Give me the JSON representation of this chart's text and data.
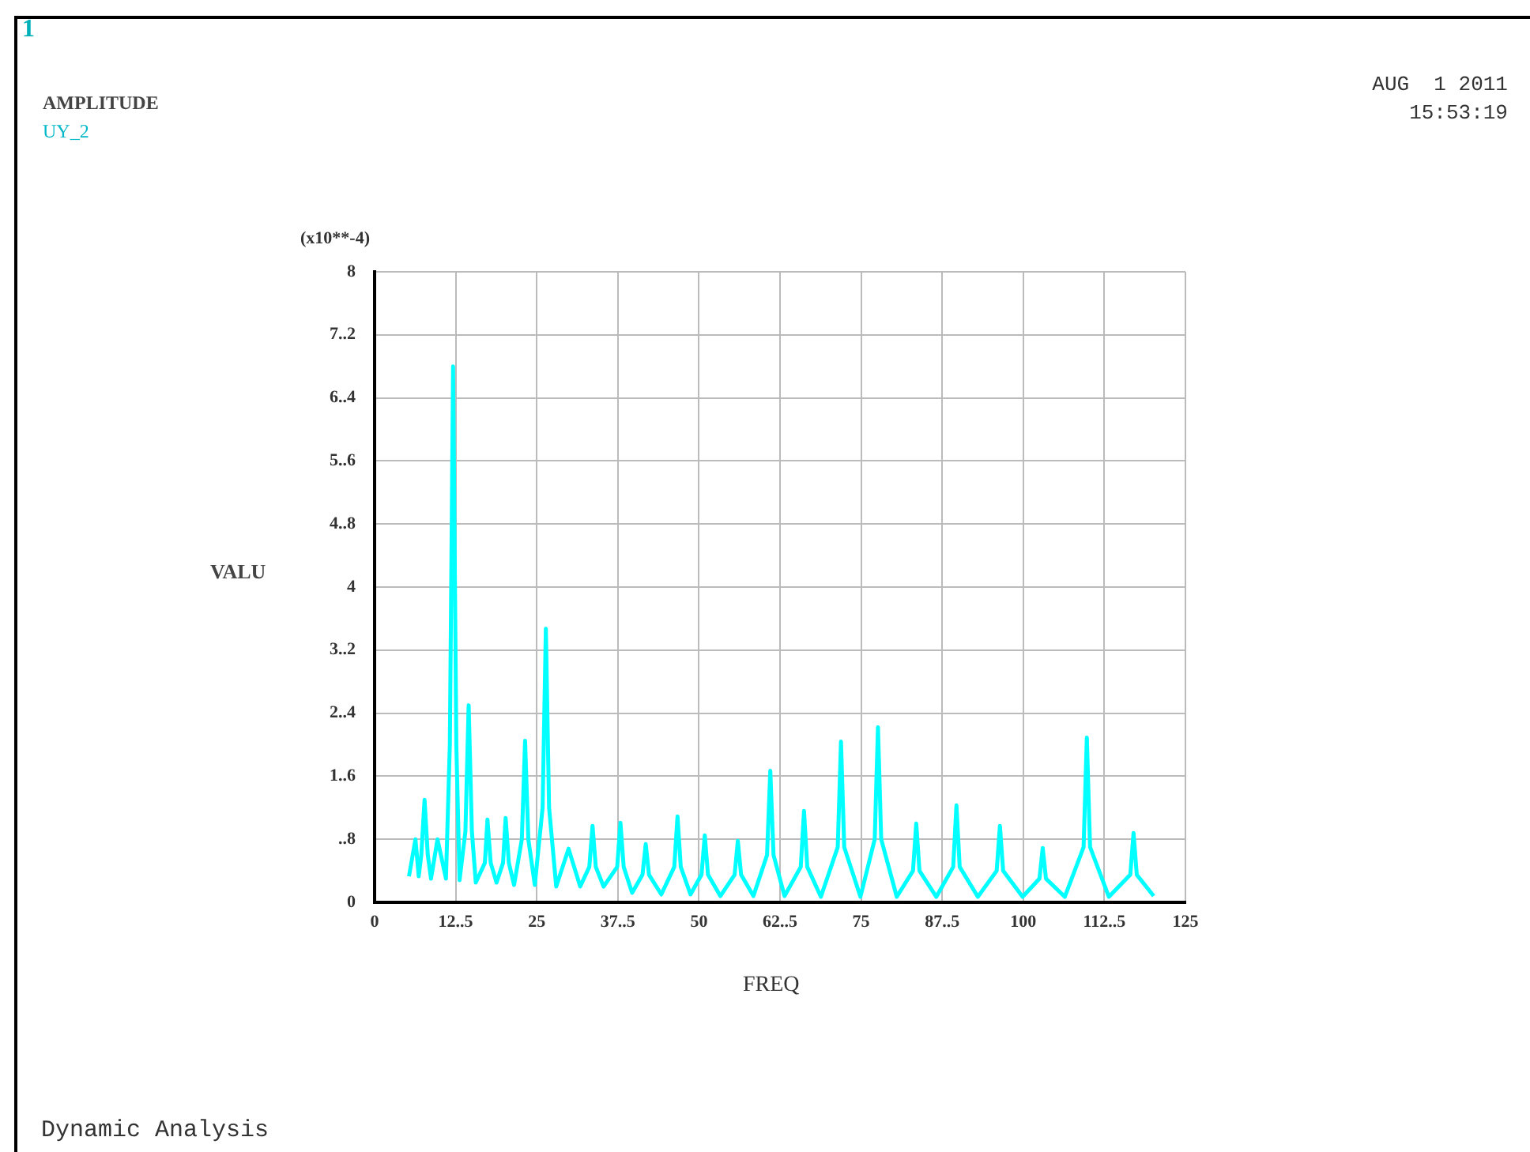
{
  "chart_data": {
    "type": "line",
    "title": "AMPLITUDE",
    "subtitle": "UY_2",
    "xlabel": "FREQ",
    "ylabel": "VALU",
    "annotations": [
      "1",
      "AUG  1 2011",
      "15:53:19",
      "(x10**-4)",
      "Dynamic Analysis"
    ],
    "x": [
      5.3,
      6.3,
      6.8,
      7.2,
      7.7,
      8.2,
      8.7,
      9.7,
      11,
      11.6,
      12.1,
      12.6,
      13.1,
      14,
      14.5,
      15,
      15.6,
      17,
      17.4,
      17.9,
      18.8,
      19.8,
      20.2,
      20.7,
      21.5,
      22.7,
      23.2,
      23.7,
      24.7,
      25.9,
      26.4,
      26.9,
      28,
      29.9,
      31.7,
      33.1,
      33.6,
      34.1,
      35.3,
      37.4,
      37.9,
      38.4,
      39.7,
      41.3,
      41.8,
      42.3,
      44.2,
      46.2,
      46.7,
      47.2,
      48.7,
      50.4,
      50.9,
      51.4,
      53.3,
      55.5,
      56,
      56.5,
      58.4,
      60.5,
      61,
      61.5,
      63.2,
      65.7,
      66.2,
      66.7,
      68.8,
      71.4,
      71.9,
      72.4,
      74.9,
      77.1,
      77.6,
      78.1,
      80.5,
      83,
      83.5,
      84,
      86.6,
      89.2,
      89.7,
      90.2,
      93,
      95.9,
      96.4,
      96.9,
      99.9,
      102.5,
      103,
      103.5,
      106.4,
      109.3,
      109.8,
      110.3,
      113.2,
      116.5,
      117,
      117.5,
      120.1
    ],
    "series": [
      {
        "color": "#00ffff",
        "values": [
          0.33,
          0.8,
          0.33,
          0.6,
          1.3,
          0.6,
          0.3,
          0.8,
          0.3,
          2.0,
          6.8,
          2.0,
          0.28,
          0.9,
          2.5,
          0.9,
          0.25,
          0.5,
          1.05,
          0.5,
          0.25,
          0.5,
          1.07,
          0.5,
          0.22,
          0.8,
          2.05,
          0.8,
          0.22,
          1.2,
          3.47,
          1.2,
          0.2,
          0.68,
          0.2,
          0.45,
          0.97,
          0.45,
          0.2,
          0.45,
          1.01,
          0.45,
          0.12,
          0.35,
          0.74,
          0.35,
          0.1,
          0.45,
          1.09,
          0.45,
          0.1,
          0.35,
          0.85,
          0.35,
          0.08,
          0.35,
          0.78,
          0.35,
          0.08,
          0.6,
          1.67,
          0.6,
          0.08,
          0.45,
          1.16,
          0.45,
          0.07,
          0.7,
          2.04,
          0.7,
          0.07,
          0.8,
          2.22,
          0.8,
          0.07,
          0.4,
          1.0,
          0.4,
          0.07,
          0.45,
          1.23,
          0.45,
          0.07,
          0.4,
          0.97,
          0.4,
          0.07,
          0.3,
          0.69,
          0.3,
          0.07,
          0.7,
          2.09,
          0.7,
          0.07,
          0.35,
          0.88,
          0.35,
          0.08
        ]
      }
    ],
    "xlim": [
      0,
      125
    ],
    "xticks": [
      0,
      {
        "value": 12.5,
        "label": "12..5"
      },
      25,
      {
        "value": 37.5,
        "label": "37..5"
      },
      50,
      {
        "value": 62.5,
        "label": "62..5"
      },
      75,
      {
        "value": 87.5,
        "label": "87..5"
      },
      100,
      {
        "value": 112.5,
        "label": "112..5"
      },
      125
    ],
    "ylim": [
      0,
      8
    ],
    "yticks": [
      0,
      {
        "value": 0.8,
        "label": "..8"
      },
      {
        "value": 1.6,
        "label": "1..6"
      },
      {
        "value": 2.4,
        "label": "2..4"
      },
      {
        "value": 3.2,
        "label": "3..2"
      },
      4,
      {
        "value": 4.8,
        "label": "4..8"
      },
      {
        "value": 5.6,
        "label": "5..6"
      },
      {
        "value": 6.4,
        "label": "6..4"
      },
      {
        "value": 7.2,
        "label": "7..2"
      },
      8
    ],
    "grid": true,
    "marker": "none",
    "line_style": "solid"
  }
}
